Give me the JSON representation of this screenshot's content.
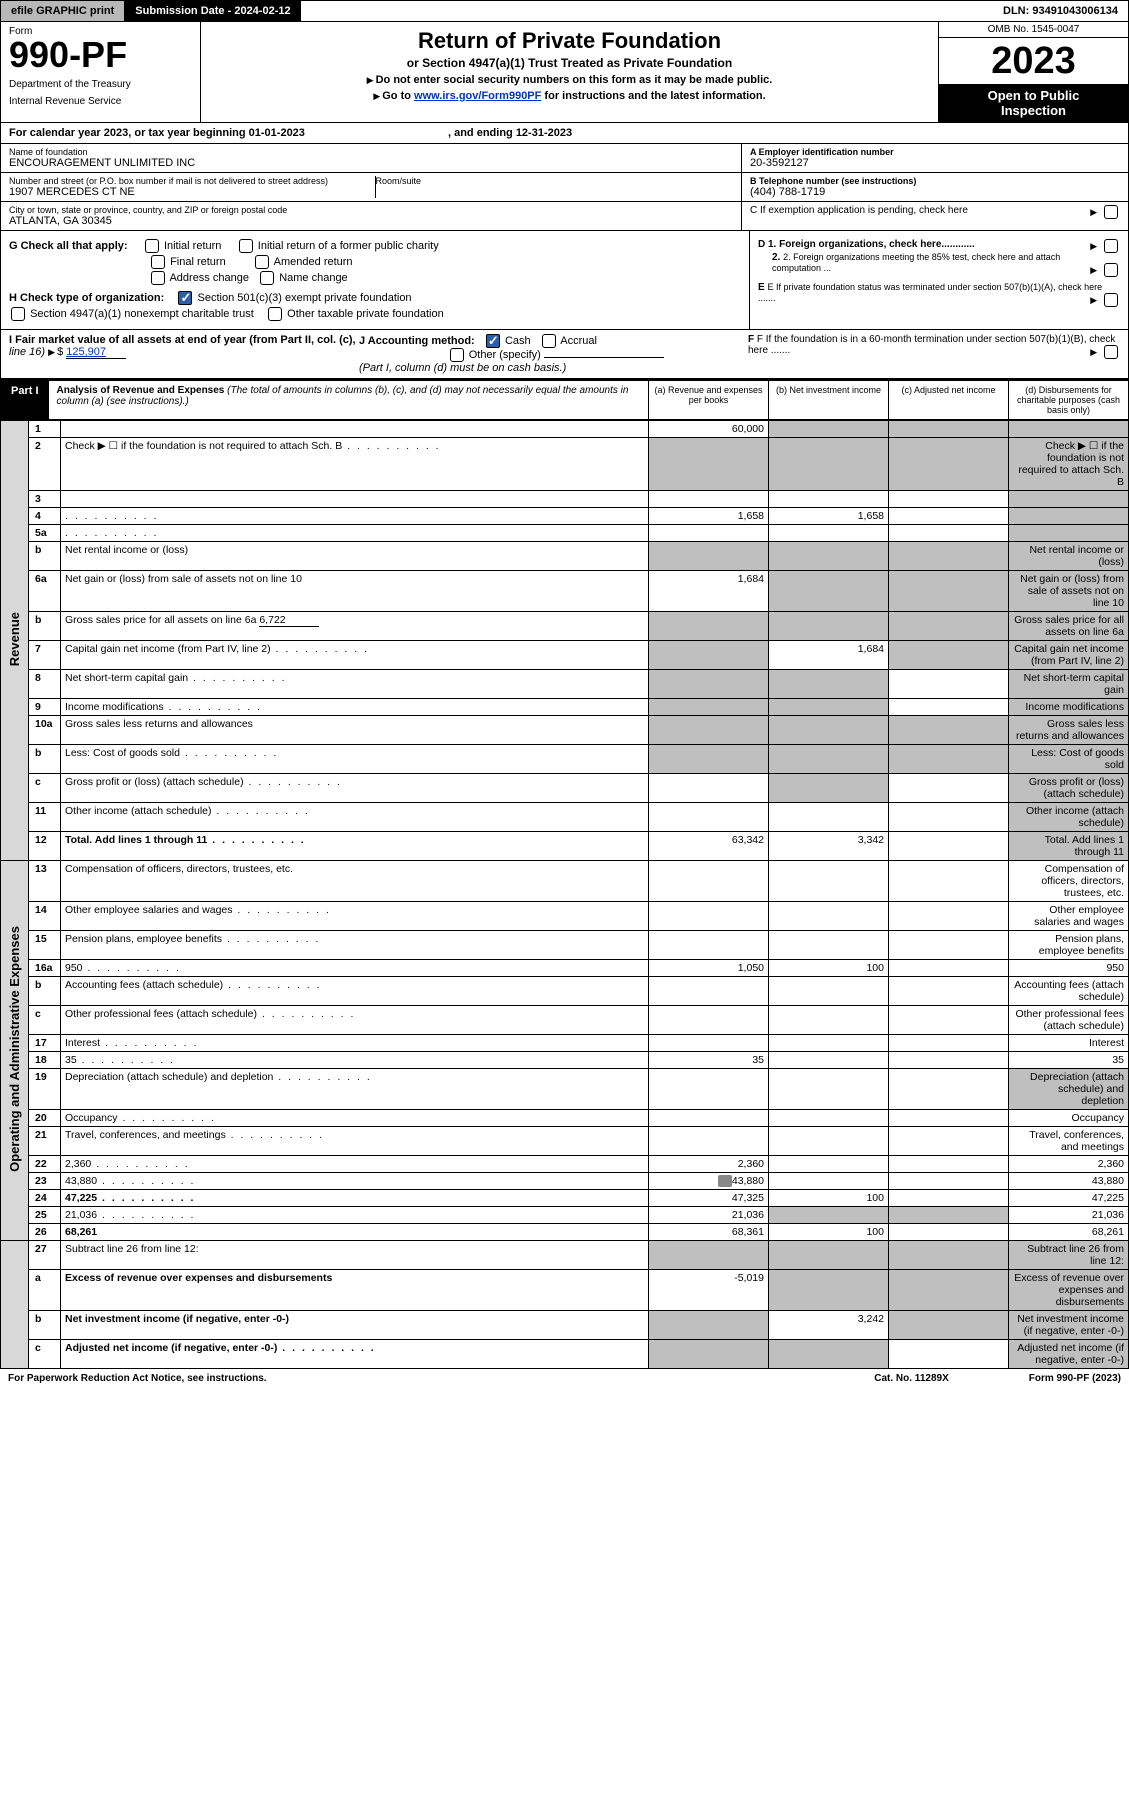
{
  "topbar": {
    "efile": "efile GRAPHIC print",
    "sub_label": "Submission Date - ",
    "sub_date": "2024-02-12",
    "dln_label": "DLN: ",
    "dln": "93491043006134"
  },
  "header": {
    "form_label": "Form",
    "form_num": "990-PF",
    "dept1": "Department of the Treasury",
    "dept2": "Internal Revenue Service",
    "title": "Return of Private Foundation",
    "subtitle": "or Section 4947(a)(1) Trust Treated as Private Foundation",
    "instr1": "Do not enter social security numbers on this form as it may be made public.",
    "instr2_pre": "Go to ",
    "instr2_link": "www.irs.gov/Form990PF",
    "instr2_post": " for instructions and the latest information.",
    "omb": "OMB No. 1545-0047",
    "year": "2023",
    "open1": "Open to Public",
    "open2": "Inspection"
  },
  "calyear": {
    "text": "For calendar year 2023, or tax year beginning 01-01-2023",
    "end": ", and ending 12-31-2023"
  },
  "info": {
    "name_label": "Name of foundation",
    "name": "ENCOURAGEMENT UNLIMITED INC",
    "addr_label": "Number and street (or P.O. box number if mail is not delivered to street address)",
    "addr": "1907 MERCEDES CT NE",
    "room_label": "Room/suite",
    "city_label": "City or town, state or province, country, and ZIP or foreign postal code",
    "city": "ATLANTA, GA  30345",
    "a_label": "A Employer identification number",
    "a_val": "20-3592127",
    "b_label": "B Telephone number (see instructions)",
    "b_val": "(404) 788-1719",
    "c_label": "C If exemption application is pending, check here"
  },
  "checks": {
    "g_label": "G Check all that apply:",
    "g1": "Initial return",
    "g2": "Initial return of a former public charity",
    "g3": "Final return",
    "g4": "Amended return",
    "g5": "Address change",
    "g6": "Name change",
    "h_label": "H Check type of organization:",
    "h1": "Section 501(c)(3) exempt private foundation",
    "h2": "Section 4947(a)(1) nonexempt charitable trust",
    "h3": "Other taxable private foundation",
    "d1": "D 1. Foreign organizations, check here............",
    "d2": "2. Foreign organizations meeting the 85% test, check here and attach computation ...",
    "e": "E  If private foundation status was terminated under section 507(b)(1)(A), check here .......",
    "i_label": "I Fair market value of all assets at end of year (from Part II, col. (c),",
    "i_line": "line 16)",
    "i_val": "125,907",
    "j_label": "J Accounting method:",
    "j1": "Cash",
    "j2": "Accrual",
    "j3": "Other (specify)",
    "j_note": "(Part I, column (d) must be on cash basis.)",
    "f": "F  If the foundation is in a 60-month termination under section 507(b)(1)(B), check here ......."
  },
  "part1": {
    "label": "Part I",
    "title": "Analysis of Revenue and Expenses",
    "title_note": "(The total of amounts in columns (b), (c), and (d) may not necessarily equal the amounts in column (a) (see instructions).)",
    "col_a": "(a)   Revenue and expenses per books",
    "col_b": "(b)   Net investment income",
    "col_c": "(c)   Adjusted net income",
    "col_d": "(d)  Disbursements for charitable purposes (cash basis only)"
  },
  "side": {
    "revenue": "Revenue",
    "expenses": "Operating and Administrative Expenses"
  },
  "rows": [
    {
      "n": "1",
      "d": "",
      "a": "60,000",
      "b": "",
      "c": "",
      "shade": [
        "b",
        "c",
        "d"
      ]
    },
    {
      "n": "2",
      "d": "Check ▶ ☐ if the foundation is not required to attach Sch. B",
      "dots": true,
      "shade": [
        "a",
        "b",
        "c",
        "d"
      ]
    },
    {
      "n": "3",
      "d": "",
      "a": "",
      "b": "",
      "c": "",
      "shade": [
        "d"
      ]
    },
    {
      "n": "4",
      "d": "",
      "dots": true,
      "a": "1,658",
      "b": "1,658",
      "c": "",
      "shade": [
        "d"
      ]
    },
    {
      "n": "5a",
      "d": "",
      "dots": true,
      "a": "",
      "b": "",
      "c": "",
      "shade": [
        "d"
      ]
    },
    {
      "n": "b",
      "d": "Net rental income or (loss)",
      "shade": [
        "a",
        "b",
        "c",
        "d"
      ]
    },
    {
      "n": "6a",
      "d": "Net gain or (loss) from sale of assets not on line 10",
      "a": "1,684",
      "b": "",
      "c": "",
      "shade": [
        "b",
        "c",
        "d"
      ]
    },
    {
      "n": "b",
      "d": "Gross sales price for all assets on line 6a",
      "inline": "6,722",
      "shade": [
        "a",
        "b",
        "c",
        "d"
      ]
    },
    {
      "n": "7",
      "d": "Capital gain net income (from Part IV, line 2)",
      "dots": true,
      "b": "1,684",
      "shade": [
        "a",
        "c",
        "d"
      ]
    },
    {
      "n": "8",
      "d": "Net short-term capital gain",
      "dots": true,
      "shade": [
        "a",
        "b",
        "d"
      ]
    },
    {
      "n": "9",
      "d": "Income modifications",
      "dots": true,
      "shade": [
        "a",
        "b",
        "d"
      ]
    },
    {
      "n": "10a",
      "d": "Gross sales less returns and allowances",
      "shade": [
        "a",
        "b",
        "c",
        "d"
      ]
    },
    {
      "n": "b",
      "d": "Less: Cost of goods sold",
      "dots": true,
      "shade": [
        "a",
        "b",
        "c",
        "d"
      ]
    },
    {
      "n": "c",
      "d": "Gross profit or (loss) (attach schedule)",
      "dots": true,
      "shade": [
        "b",
        "d"
      ]
    },
    {
      "n": "11",
      "d": "Other income (attach schedule)",
      "dots": true,
      "shade": [
        "d"
      ]
    },
    {
      "n": "12",
      "d": "Total. Add lines 1 through 11",
      "dots": true,
      "bold": true,
      "a": "63,342",
      "b": "3,342",
      "shade": [
        "d"
      ]
    }
  ],
  "exp_rows": [
    {
      "n": "13",
      "d": "Compensation of officers, directors, trustees, etc."
    },
    {
      "n": "14",
      "d": "Other employee salaries and wages",
      "dots": true
    },
    {
      "n": "15",
      "d": "Pension plans, employee benefits",
      "dots": true
    },
    {
      "n": "16a",
      "d": "950",
      "dots": true,
      "a": "1,050",
      "b": "100"
    },
    {
      "n": "b",
      "d": "Accounting fees (attach schedule)",
      "dots": true
    },
    {
      "n": "c",
      "d": "Other professional fees (attach schedule)",
      "dots": true
    },
    {
      "n": "17",
      "d": "Interest",
      "dots": true
    },
    {
      "n": "18",
      "d": "35",
      "dots": true,
      "a": "35"
    },
    {
      "n": "19",
      "d": "Depreciation (attach schedule) and depletion",
      "dots": true,
      "shade": [
        "d"
      ]
    },
    {
      "n": "20",
      "d": "Occupancy",
      "dots": true
    },
    {
      "n": "21",
      "d": "Travel, conferences, and meetings",
      "dots": true
    },
    {
      "n": "22",
      "d": "2,360",
      "dots": true,
      "a": "2,360"
    },
    {
      "n": "23",
      "d": "43,880",
      "dots": true,
      "icon": true,
      "a": "43,880"
    },
    {
      "n": "24",
      "d": "47,225",
      "dots": true,
      "bold": true,
      "a": "47,325",
      "b": "100"
    },
    {
      "n": "25",
      "d": "21,036",
      "dots": true,
      "a": "21,036",
      "shade": [
        "b",
        "c"
      ]
    },
    {
      "n": "26",
      "d": "68,261",
      "bold": true,
      "a": "68,361",
      "b": "100"
    }
  ],
  "final_rows": [
    {
      "n": "27",
      "d": "Subtract line 26 from line 12:",
      "shade": [
        "a",
        "b",
        "c",
        "d"
      ]
    },
    {
      "n": "a",
      "d": "Excess of revenue over expenses and disbursements",
      "bold": true,
      "a": "-5,019",
      "shade": [
        "b",
        "c",
        "d"
      ]
    },
    {
      "n": "b",
      "d": "Net investment income (if negative, enter -0-)",
      "bold": true,
      "b": "3,242",
      "shade": [
        "a",
        "c",
        "d"
      ]
    },
    {
      "n": "c",
      "d": "Adjusted net income (if negative, enter -0-)",
      "bold": true,
      "dots": true,
      "shade": [
        "a",
        "b",
        "d"
      ]
    }
  ],
  "footer": {
    "left": "For Paperwork Reduction Act Notice, see instructions.",
    "mid": "Cat. No. 11289X",
    "right": "Form 990-PF (2023)"
  },
  "colors": {
    "shade": "#bfbfbf",
    "link": "#0033cc",
    "check": "#2b5fad"
  }
}
